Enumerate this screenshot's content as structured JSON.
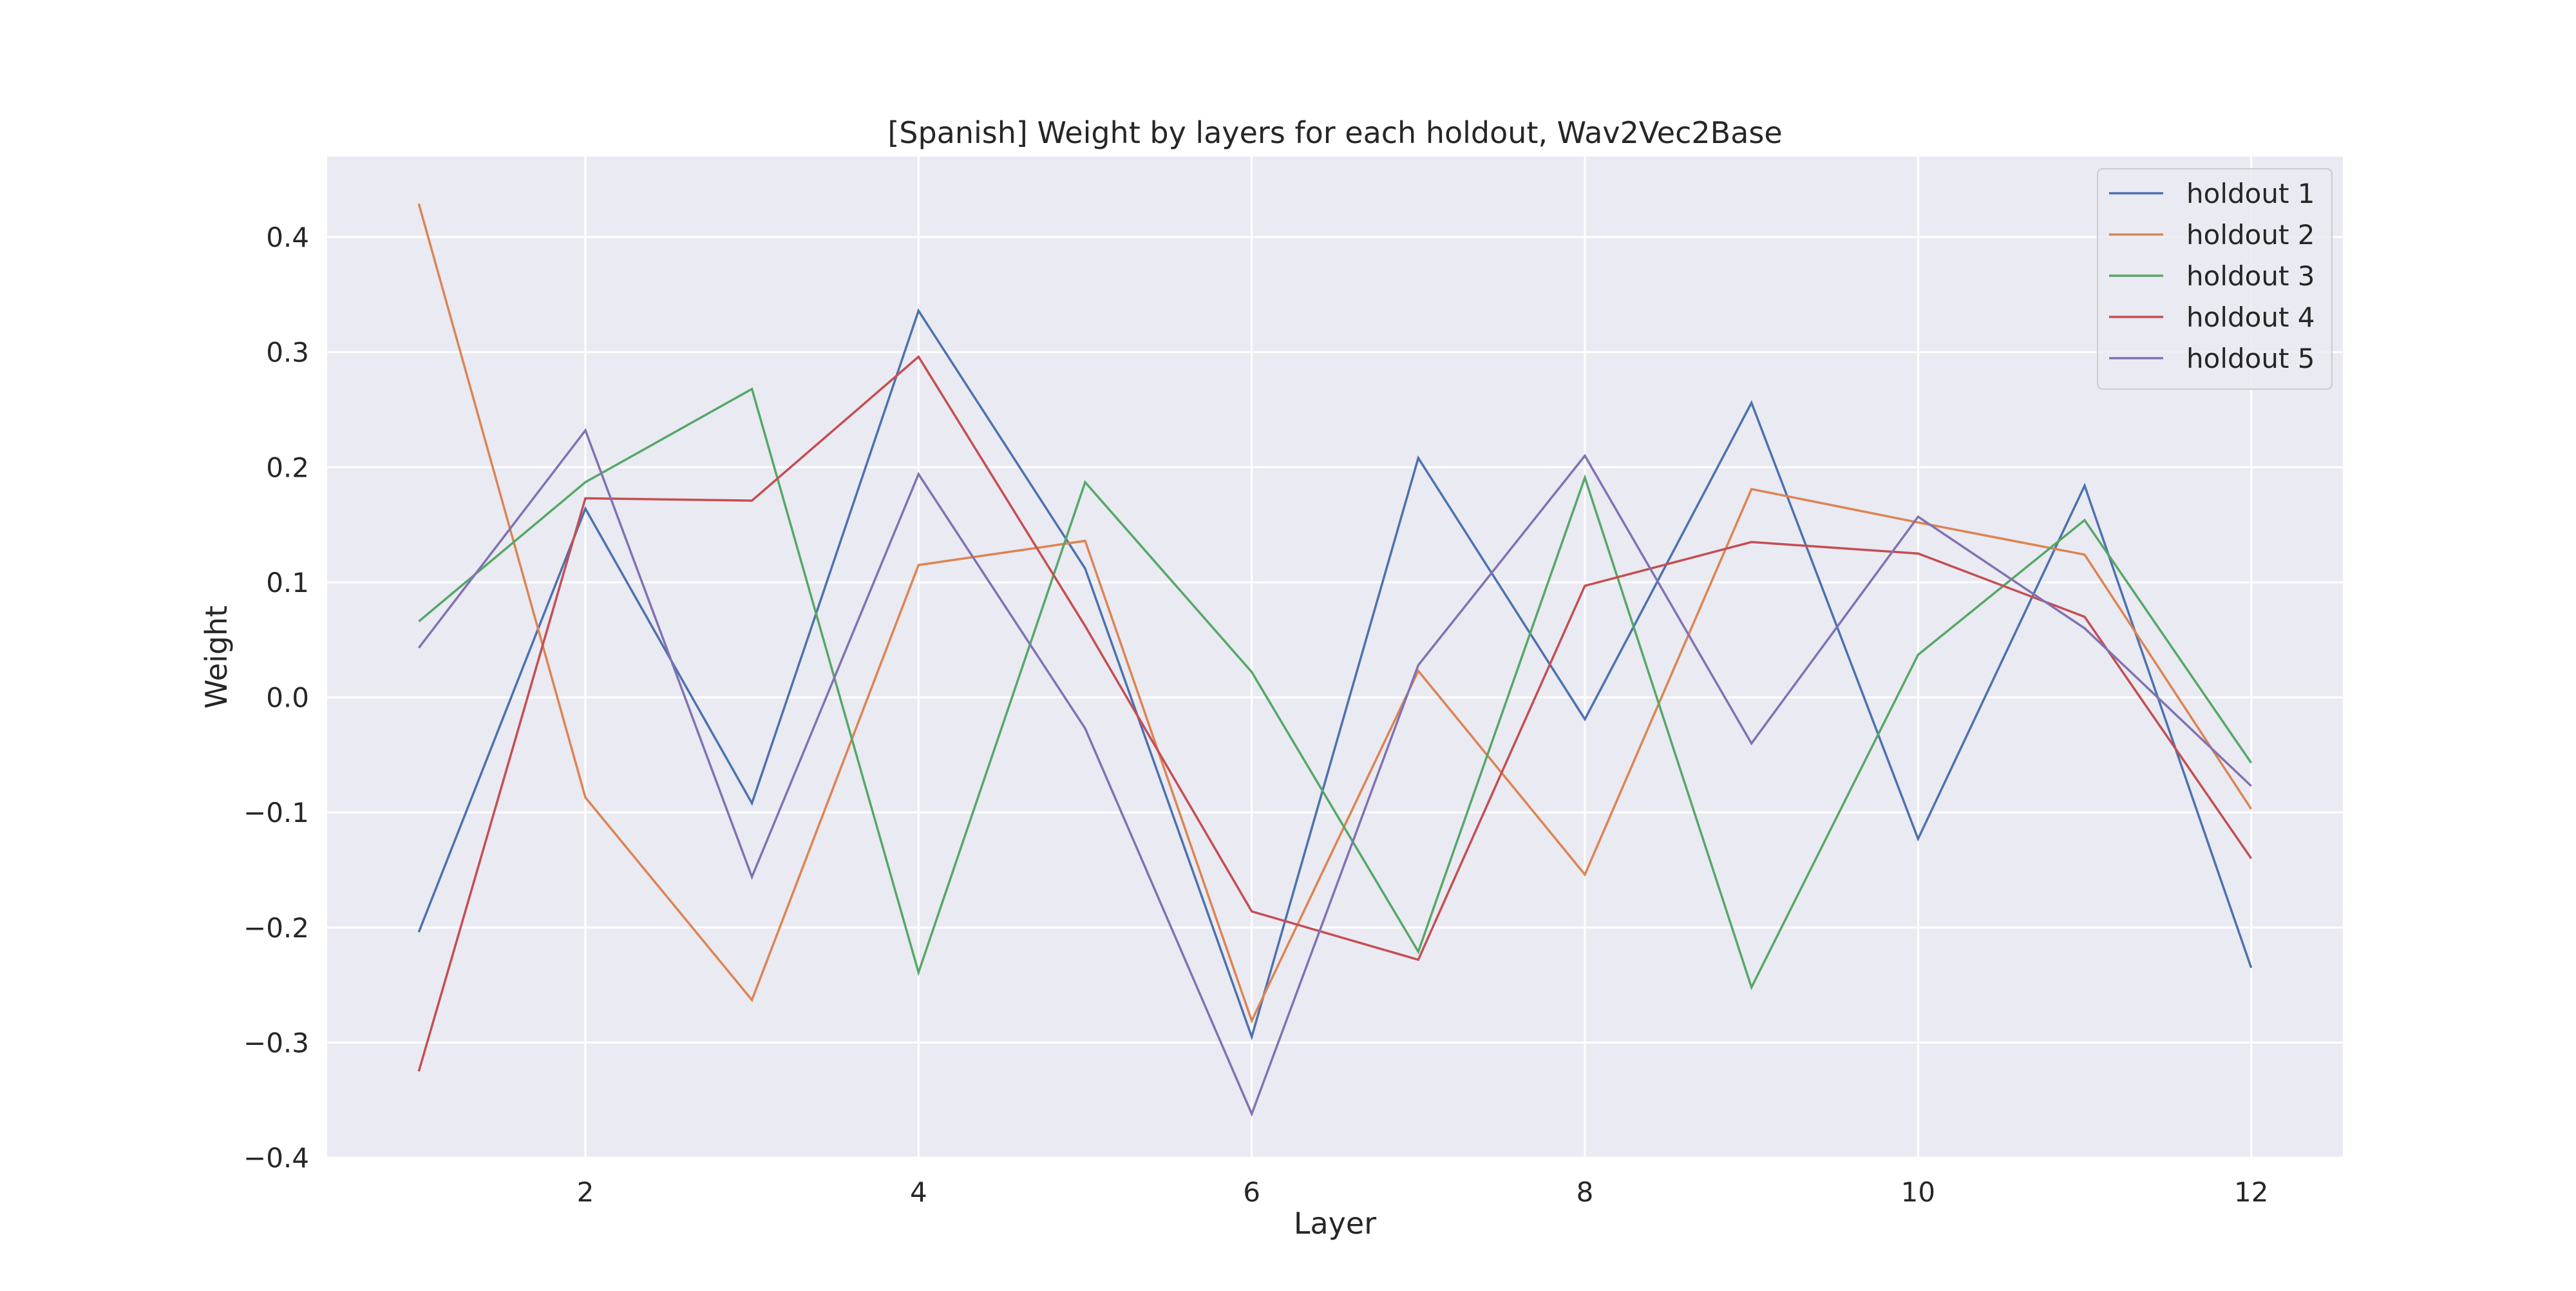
{
  "chart_data": {
    "type": "line",
    "title": "[Spanish] Weight by layers for each holdout, Wav2Vec2Base",
    "xlabel": "Layer",
    "ylabel": "Weight",
    "xlim": [
      0.45,
      12.55
    ],
    "ylim": [
      -0.4,
      0.47
    ],
    "x": [
      1,
      2,
      3,
      4,
      5,
      6,
      7,
      8,
      9,
      10,
      11,
      12
    ],
    "x_ticks": [
      2,
      4,
      6,
      8,
      10,
      12
    ],
    "y_ticks": [
      0.4,
      0.3,
      0.2,
      0.1,
      0.0,
      -0.1,
      -0.2,
      -0.3,
      -0.4
    ],
    "y_tick_labels": [
      "0.4",
      "0.3",
      "0.2",
      "0.1",
      "0.0",
      "−0.1",
      "−0.2",
      "−0.3",
      "−0.4"
    ],
    "grid": true,
    "background_color": "#eaeaf2",
    "grid_color": "#ffffff",
    "legend_position": "top-right",
    "series": [
      {
        "name": "holdout 1",
        "color": "#4c72b0",
        "values": [
          -0.204,
          0.164,
          -0.092,
          0.336,
          0.112,
          -0.295,
          0.208,
          -0.019,
          0.256,
          -0.123,
          0.184,
          -0.235
        ]
      },
      {
        "name": "holdout 2",
        "color": "#dd8452",
        "values": [
          0.429,
          -0.087,
          -0.263,
          0.115,
          0.136,
          -0.281,
          0.023,
          -0.154,
          0.181,
          0.152,
          0.124,
          -0.097
        ]
      },
      {
        "name": "holdout 3",
        "color": "#55a868",
        "values": [
          0.066,
          0.187,
          0.268,
          -0.239,
          0.187,
          0.022,
          -0.221,
          0.191,
          -0.252,
          0.037,
          0.154,
          -0.057
        ]
      },
      {
        "name": "holdout 4",
        "color": "#c44e52",
        "values": [
          -0.325,
          0.173,
          0.171,
          0.296,
          0.062,
          -0.186,
          -0.228,
          0.097,
          0.135,
          0.125,
          0.07,
          -0.14
        ]
      },
      {
        "name": "holdout 5",
        "color": "#8172b3",
        "values": [
          0.043,
          0.232,
          -0.156,
          0.194,
          -0.027,
          -0.362,
          0.028,
          0.21,
          -0.04,
          0.157,
          0.06,
          -0.077
        ]
      }
    ]
  }
}
